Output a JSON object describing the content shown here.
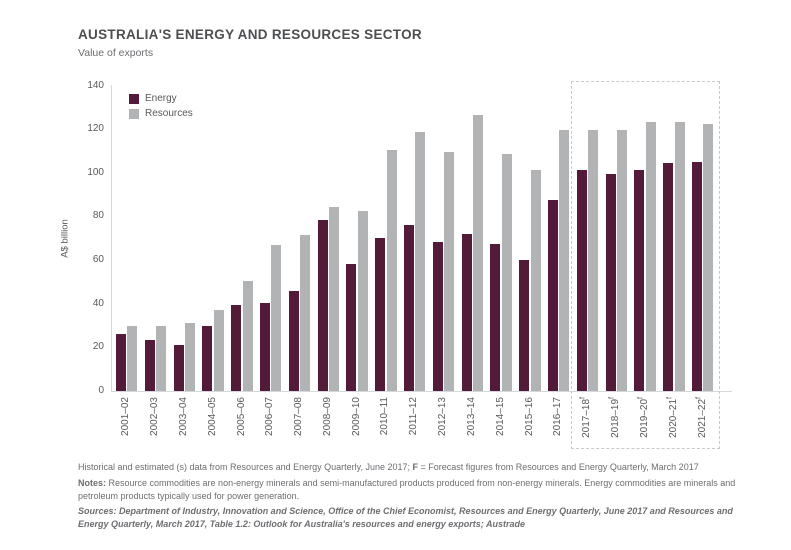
{
  "header": {
    "title": "AUSTRALIA'S ENERGY AND RESOURCES SECTOR",
    "subtitle": "Value of exports"
  },
  "chart_data": {
    "type": "bar",
    "title": "AUSTRALIA'S ENERGY AND RESOURCES SECTOR",
    "subtitle": "Value of exports",
    "xlabel": "",
    "ylabel": "A$ billion",
    "ylim": [
      0,
      140
    ],
    "yticks": [
      0,
      20,
      40,
      60,
      80,
      100,
      120,
      140
    ],
    "grid": false,
    "legend_position": "top-left-inside",
    "categories": [
      "2001–02",
      "2002–03",
      "2003–04",
      "2004–05",
      "2005–06",
      "2006–07",
      "2007–08",
      "2008–09",
      "2009–10",
      "2010–11",
      "2011–12",
      "2012–13",
      "2013–14",
      "2014–15",
      "2015–16",
      "2016–17",
      "2017–18",
      "2018–19",
      "2019–20",
      "2020–21",
      "2021–22"
    ],
    "forecast_flags": [
      false,
      false,
      false,
      false,
      false,
      false,
      false,
      false,
      false,
      false,
      false,
      false,
      false,
      false,
      false,
      false,
      true,
      true,
      true,
      true,
      true
    ],
    "forecast_suffix": "f",
    "series": [
      {
        "name": "Energy",
        "color": "#541a3a",
        "values": [
          26,
          23.5,
          21,
          30,
          39.5,
          40.5,
          46,
          78.5,
          58,
          70,
          76,
          68.5,
          72,
          67.5,
          60,
          87.5,
          101.5,
          99.5,
          101.5,
          104.5,
          105
        ]
      },
      {
        "name": "Resources",
        "color": "#b2b3b5",
        "values": [
          30,
          30,
          31,
          37,
          50.5,
          67,
          71.5,
          84.5,
          82.5,
          110.5,
          118.5,
          109.5,
          126.5,
          108.5,
          101.5,
          119.5,
          119.5,
          119.5,
          123.5,
          123.5,
          122.5
        ]
      }
    ],
    "annotations": {
      "forecast_box": "dashed rectangle enclosing forecast years 2017–18 to 2021–22"
    }
  },
  "colors": {
    "energy": "#541a3a",
    "resources": "#b2b3b5",
    "axis_line": "#d6d7d8",
    "tick_text": "#58595b",
    "muted_text": "#6d6e71",
    "forecast_box_border": "#c8c9cb"
  },
  "footnotes": {
    "historical": [
      {
        "text": "Historical and estimated (s) data from Resources and Energy Quarterly, June 2017; ",
        "bold": false,
        "italic": false
      },
      {
        "text": "F",
        "bold": true,
        "italic": false
      },
      {
        "text": " = Forecast figures from Resources and Energy Quarterly, March 2017",
        "bold": false,
        "italic": false
      }
    ],
    "notes": [
      {
        "text": "Notes:",
        "bold": true,
        "italic": false
      },
      {
        "text": " Resource commodities are non-energy minerals and semi-manufactured products produced from non-energy minerals. Energy commodities are minerals and petroleum products typically used for power generation.",
        "bold": false,
        "italic": false
      }
    ],
    "sources": [
      {
        "text": "Sources: Department of Industry, Innovation and Science, Office of the Chief Economist, Resources and Energy Quarterly, June 2017 and Resources and Energy Quarterly, March 2017, Table 1.2: Outlook for Australia's resources and energy exports; Austrade",
        "bold": true,
        "italic": true
      }
    ]
  }
}
